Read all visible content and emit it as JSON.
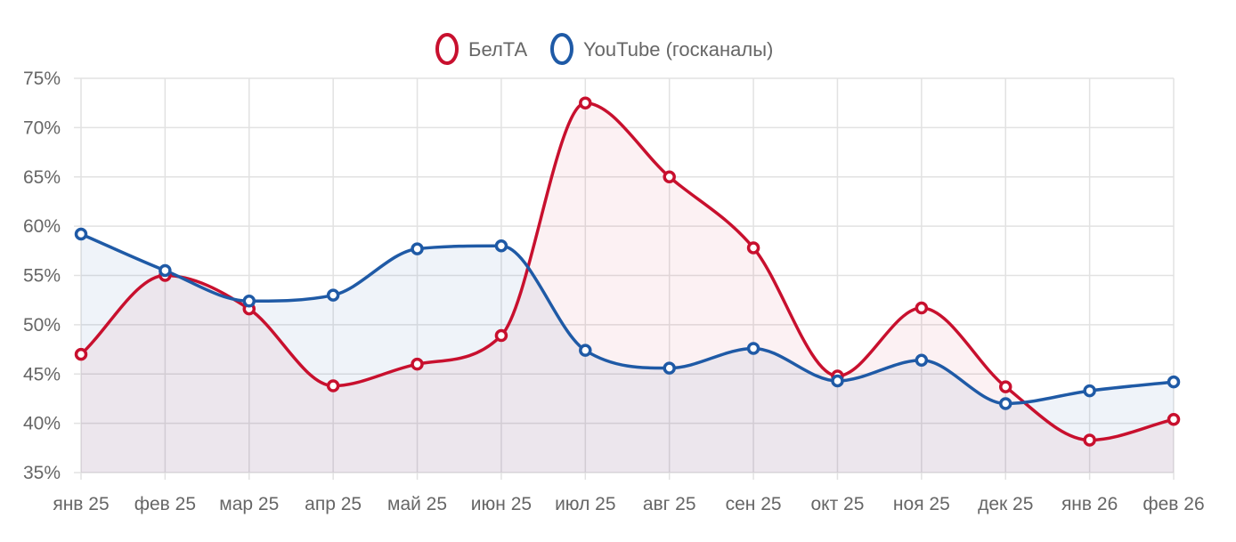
{
  "chart_data": {
    "type": "line",
    "title": "",
    "xlabel": "",
    "ylabel": "",
    "categories": [
      "янв 25",
      "фев 25",
      "мар 25",
      "апр 25",
      "май 25",
      "июн 25",
      "июл 25",
      "авг 25",
      "сен 25",
      "окт 25",
      "ноя 25",
      "дек 25",
      "янв 26",
      "фев 26"
    ],
    "y_ticks": [
      "35%",
      "40%",
      "45%",
      "50%",
      "55%",
      "60%",
      "65%",
      "70%",
      "75%"
    ],
    "ylim": [
      35,
      75
    ],
    "y_unit": "%",
    "grid": true,
    "legend_position": "top-center",
    "smooth": true,
    "area_fill": true,
    "series": [
      {
        "name": "БелТА",
        "color": "#c8102e",
        "fill": "rgba(200,16,46,0.06)",
        "values": [
          47.0,
          55.0,
          51.6,
          43.8,
          46.0,
          48.9,
          72.5,
          65.0,
          57.8,
          44.8,
          51.7,
          43.7,
          38.3,
          40.4
        ]
      },
      {
        "name": "YouTube (госканалы)",
        "color": "#1f5aa6",
        "fill": "rgba(31,90,166,0.07)",
        "values": [
          59.2,
          55.5,
          52.4,
          53.0,
          57.7,
          58.0,
          47.4,
          45.6,
          47.6,
          44.3,
          46.4,
          42.0,
          43.3,
          44.2
        ]
      }
    ]
  }
}
